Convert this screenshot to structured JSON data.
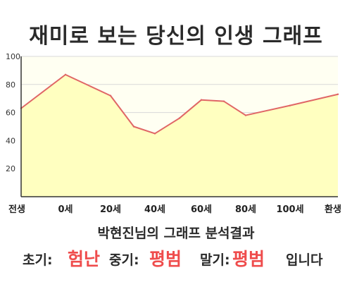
{
  "title": "재미로 보는 당신의 인생 그래프",
  "chart_data": {
    "type": "area",
    "title": "재미로 보는 당신의 인생 그래프",
    "xlabel": "",
    "ylabel": "",
    "x_labels": [
      "전생",
      "0세",
      "20세",
      "40세",
      "60세",
      "80세",
      "100세",
      "환생"
    ],
    "y_ticks": [
      20,
      40,
      60,
      80,
      100
    ],
    "ylim": [
      0,
      100
    ],
    "grid": true,
    "series": [
      {
        "values": [
          {
            "x": "전생",
            "y": 63
          },
          {
            "x": "0세",
            "y": 87
          },
          {
            "x": "20세",
            "y": 72
          },
          {
            "x": "30세",
            "y": 50
          },
          {
            "x": "40세",
            "y": 45
          },
          {
            "x": "50세",
            "y": 56
          },
          {
            "x": "60세",
            "y": 69
          },
          {
            "x": "70세",
            "y": 68
          },
          {
            "x": "80세",
            "y": 58
          },
          {
            "x": "100세",
            "y": 65
          },
          {
            "x": "환생",
            "y": 73
          }
        ]
      }
    ],
    "colors": {
      "line": "#e06666",
      "fill": "#ffffc0",
      "plot_bg": "#fffff2",
      "grid": "#d8d8d8"
    }
  },
  "result": {
    "title": "박현진님의 그래프 분석결과",
    "early_label": "초기:",
    "early_value": "험난",
    "middle_label": "중기:",
    "middle_value": "평범",
    "late_label": "말기:",
    "late_value": "평범",
    "suffix": "입니다",
    "accent_color": "#ef4c4c"
  }
}
